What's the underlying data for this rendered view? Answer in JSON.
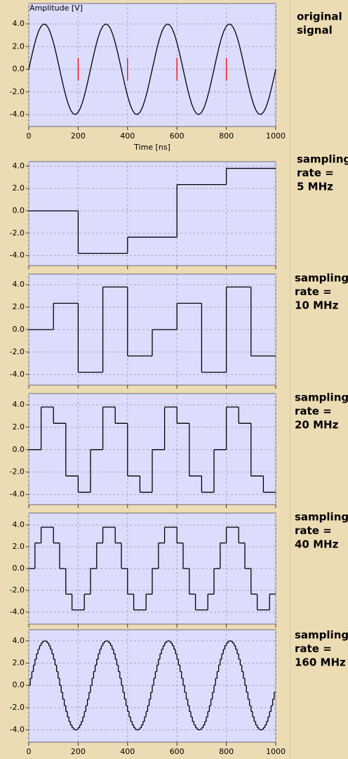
{
  "chart_data": [
    {
      "type": "line",
      "ylabel": "Amplitude [V]",
      "xlabel": "Time [ns]",
      "label": [
        "original",
        "signal"
      ],
      "color": "#000000",
      "grid": true,
      "xtick_labels": true,
      "xlim": [
        0,
        1000
      ],
      "xticks": [
        0,
        200,
        400,
        600,
        800,
        1000
      ],
      "ylim": [
        -5.05,
        5.8
      ],
      "yticks": [
        {
          "value": 4,
          "label": "4.0"
        },
        {
          "value": 2,
          "label": "2.0"
        },
        {
          "value": 0,
          "label": "0.0"
        },
        {
          "value": -2,
          "label": "-2.0"
        },
        {
          "value": -4,
          "label": "-4.0"
        }
      ],
      "markers": {
        "x": [
          200,
          400,
          600,
          800
        ],
        "low": -1,
        "high": 1,
        "color": "#ff0000"
      },
      "x": [
        0,
        10,
        20,
        30,
        40,
        50,
        60,
        70,
        80,
        90,
        100,
        110,
        120,
        130,
        140,
        150,
        160,
        170,
        180,
        190,
        200,
        210,
        220,
        230,
        240,
        250,
        260,
        270,
        280,
        290,
        300,
        310,
        320,
        330,
        340,
        350,
        360,
        370,
        380,
        390,
        400,
        410,
        420,
        430,
        440,
        450,
        460,
        470,
        480,
        490,
        500,
        510,
        520,
        530,
        540,
        550,
        560,
        570,
        580,
        590,
        600,
        610,
        620,
        630,
        640,
        650,
        660,
        670,
        680,
        690,
        700,
        710,
        720,
        730,
        740,
        750,
        760,
        770,
        780,
        790,
        800,
        810,
        820,
        830,
        840,
        850,
        860,
        870,
        880,
        890,
        900,
        910,
        920,
        930,
        940,
        950,
        960,
        970,
        980,
        990,
        1000
      ],
      "values": [
        0,
        0.99,
        1.93,
        2.74,
        3.38,
        3.8,
        3.99,
        3.93,
        3.62,
        3.08,
        2.35,
        1.47,
        0.5,
        -0.5,
        -1.47,
        -2.35,
        -3.08,
        -3.62,
        -3.93,
        -3.99,
        -3.8,
        -3.38,
        -2.74,
        -1.93,
        -0.99,
        0,
        0.99,
        1.93,
        2.74,
        3.38,
        3.8,
        3.99,
        3.93,
        3.62,
        3.08,
        2.35,
        1.47,
        0.5,
        -0.5,
        -1.47,
        -2.35,
        -3.08,
        -3.62,
        -3.93,
        -3.99,
        -3.8,
        -3.38,
        -2.74,
        -1.93,
        -0.99,
        0,
        0.99,
        1.93,
        2.74,
        3.38,
        3.8,
        3.99,
        3.93,
        3.62,
        3.08,
        2.35,
        1.47,
        0.5,
        -0.5,
        -1.47,
        -2.35,
        -3.08,
        -3.62,
        -3.93,
        -3.99,
        -3.8,
        -3.38,
        -2.74,
        -1.93,
        -0.99,
        0,
        0.99,
        1.93,
        2.74,
        3.38,
        3.8,
        3.99,
        3.93,
        3.62,
        3.08,
        2.35,
        1.47,
        0.5,
        -0.5,
        -1.47,
        -2.35,
        -3.08,
        -3.62,
        -3.93,
        -3.99,
        -3.8,
        -3.38,
        -2.74,
        -1.93,
        -0.99,
        0
      ]
    },
    {
      "type": "step",
      "label": [
        "sampling",
        "rate =",
        "5 MHz"
      ],
      "color": "#000000",
      "grid": true,
      "xtick_labels": false,
      "xlim": [
        0,
        1000
      ],
      "xticks": [
        0,
        200,
        400,
        600,
        800,
        1000
      ],
      "ylim": [
        -4.9,
        4.4
      ],
      "yticks": [
        {
          "value": 4,
          "label": "4.0"
        },
        {
          "value": 2,
          "label": "2.0"
        },
        {
          "value": 0,
          "label": "0.0"
        },
        {
          "value": -2,
          "label": "-2.0"
        },
        {
          "value": -4,
          "label": "-4.0"
        }
      ],
      "x": [
        0,
        200,
        400,
        600,
        800
      ],
      "values": [
        0,
        -3.8,
        -2.35,
        2.35,
        3.8
      ]
    },
    {
      "type": "step",
      "label": [
        "sampling",
        "rate =",
        "10 MHz"
      ],
      "color": "#000000",
      "grid": true,
      "xtick_labels": false,
      "xlim": [
        0,
        1000
      ],
      "xticks": [
        0,
        200,
        400,
        600,
        800,
        1000
      ],
      "ylim": [
        -4.95,
        4.95
      ],
      "yticks": [
        {
          "value": 4,
          "label": "4.0"
        },
        {
          "value": 2,
          "label": "2.0"
        },
        {
          "value": 0,
          "label": "0.0"
        },
        {
          "value": -2,
          "label": "-2.0"
        },
        {
          "value": -4,
          "label": "-4.0"
        }
      ],
      "x": [
        0,
        100,
        200,
        300,
        400,
        500,
        600,
        700,
        800,
        900
      ],
      "values": [
        0,
        2.35,
        -3.8,
        3.8,
        -2.35,
        0,
        2.35,
        -3.8,
        3.8,
        -2.35
      ]
    },
    {
      "type": "step",
      "label": [
        "sampling",
        "rate =",
        "20 MHz"
      ],
      "color": "#000000",
      "grid": true,
      "xtick_labels": false,
      "xlim": [
        0,
        1000
      ],
      "xticks": [
        0,
        200,
        400,
        600,
        800,
        1000
      ],
      "ylim": [
        -4.9,
        5
      ],
      "yticks": [
        {
          "value": 4,
          "label": "4.0"
        },
        {
          "value": 2,
          "label": "2.0"
        },
        {
          "value": 0,
          "label": "0.0"
        },
        {
          "value": -2,
          "label": "-2.0"
        },
        {
          "value": -4,
          "label": "-4.0"
        }
      ],
      "x": [
        0,
        50,
        100,
        150,
        200,
        250,
        300,
        350,
        400,
        450,
        500,
        550,
        600,
        650,
        700,
        750,
        800,
        850,
        900,
        950
      ],
      "values": [
        0,
        3.8,
        2.35,
        -2.35,
        -3.8,
        0,
        3.8,
        2.35,
        -2.35,
        -3.8,
        0,
        3.8,
        2.35,
        -2.35,
        -3.8,
        0,
        3.8,
        2.35,
        -2.35,
        -3.8
      ]
    },
    {
      "type": "step",
      "label": [
        "sampling",
        "rate =",
        "40 MHz"
      ],
      "color": "#000000",
      "grid": true,
      "xtick_labels": false,
      "xlim": [
        0,
        1000
      ],
      "xticks": [
        0,
        200,
        400,
        600,
        800,
        1000
      ],
      "ylim": [
        -5.1,
        5.1
      ],
      "yticks": [
        {
          "value": 4,
          "label": "4.0"
        },
        {
          "value": 2,
          "label": "2.0"
        },
        {
          "value": 0,
          "label": "0.0"
        },
        {
          "value": -2,
          "label": "-2.0"
        },
        {
          "value": -4,
          "label": "-4.0"
        }
      ],
      "x": [
        0,
        25,
        50,
        75,
        100,
        125,
        150,
        175,
        200,
        225,
        250,
        275,
        300,
        325,
        350,
        375,
        400,
        425,
        450,
        475,
        500,
        525,
        550,
        575,
        600,
        625,
        650,
        675,
        700,
        725,
        750,
        775,
        800,
        825,
        850,
        875,
        900,
        925,
        950,
        975
      ],
      "values": [
        0,
        2.35,
        3.8,
        3.8,
        2.35,
        0,
        -2.35,
        -3.8,
        -3.8,
        -2.35,
        0,
        2.35,
        3.8,
        3.8,
        2.35,
        0,
        -2.35,
        -3.8,
        -3.8,
        -2.35,
        0,
        2.35,
        3.8,
        3.8,
        2.35,
        0,
        -2.35,
        -3.8,
        -3.8,
        -2.35,
        0,
        2.35,
        3.8,
        3.8,
        2.35,
        0,
        -2.35,
        -3.8,
        -3.8,
        -2.35
      ]
    },
    {
      "type": "step",
      "label": [
        "sampling",
        "rate =",
        "160 MHz"
      ],
      "color": "#000000",
      "grid": true,
      "xtick_labels": true,
      "xlim": [
        0,
        1000
      ],
      "xticks": [
        0,
        200,
        400,
        600,
        800,
        1000
      ],
      "ylim": [
        -5.1,
        5
      ],
      "yticks": [
        {
          "value": 4,
          "label": "4.0"
        },
        {
          "value": 2,
          "label": "2.0"
        },
        {
          "value": 0,
          "label": "0.0"
        },
        {
          "value": -2,
          "label": "-2.0"
        },
        {
          "value": -4,
          "label": "-4.0"
        }
      ],
      "x": [
        0,
        6.25,
        12.5,
        18.75,
        25,
        31.25,
        37.5,
        43.75,
        50,
        56.25,
        62.5,
        68.75,
        75,
        81.25,
        87.5,
        93.75,
        100,
        106.25,
        112.5,
        118.75,
        125,
        131.25,
        137.5,
        143.75,
        150,
        156.25,
        162.5,
        168.75,
        175,
        181.25,
        187.5,
        193.75,
        200,
        206.25,
        212.5,
        218.75,
        225,
        231.25,
        237.5,
        243.75,
        250,
        256.25,
        262.5,
        268.75,
        275,
        281.25,
        287.5,
        293.75,
        300,
        306.25,
        312.5,
        318.75,
        325,
        331.25,
        337.5,
        343.75,
        350,
        356.25,
        362.5,
        368.75,
        375,
        381.25,
        387.5,
        393.75,
        400,
        406.25,
        412.5,
        418.75,
        425,
        431.25,
        437.5,
        443.75,
        450,
        456.25,
        462.5,
        468.75,
        475,
        481.25,
        487.5,
        493.75,
        500,
        506.25,
        512.5,
        518.75,
        525,
        531.25,
        537.5,
        543.75,
        550,
        556.25,
        562.5,
        568.75,
        575,
        581.25,
        587.5,
        593.75,
        600,
        606.25,
        612.5,
        618.75,
        625,
        631.25,
        637.5,
        643.75,
        650,
        656.25,
        662.5,
        668.75,
        675,
        681.25,
        687.5,
        693.75,
        700,
        706.25,
        712.5,
        718.75,
        725,
        731.25,
        737.5,
        743.75,
        750,
        756.25,
        762.5,
        768.75,
        775,
        781.25,
        787.5,
        793.75,
        800,
        806.25,
        812.5,
        818.75,
        825,
        831.25,
        837.5,
        843.75,
        850,
        856.25,
        862.5,
        868.75,
        875,
        881.25,
        887.5,
        893.75,
        900,
        906.25,
        912.5,
        918.75,
        925,
        931.25,
        937.5,
        943.75,
        950,
        956.25,
        962.5,
        968.75,
        975,
        981.25,
        987.5,
        993.75
      ],
      "values": [
        0,
        0.63,
        1.24,
        1.82,
        2.35,
        2.83,
        3.24,
        3.56,
        3.8,
        3.95,
        4,
        3.95,
        3.8,
        3.56,
        3.24,
        2.83,
        2.35,
        1.82,
        1.24,
        0.63,
        0,
        -0.63,
        -1.24,
        -1.82,
        -2.35,
        -2.83,
        -3.24,
        -3.56,
        -3.8,
        -3.95,
        -4,
        -3.95,
        -3.8,
        -3.56,
        -3.24,
        -2.83,
        -2.35,
        -1.82,
        -1.24,
        -0.63,
        0,
        0.63,
        1.24,
        1.82,
        2.35,
        2.83,
        3.24,
        3.56,
        3.8,
        3.95,
        4,
        3.95,
        3.8,
        3.56,
        3.24,
        2.83,
        2.35,
        1.82,
        1.24,
        0.63,
        0,
        -0.63,
        -1.24,
        -1.82,
        -2.35,
        -2.83,
        -3.24,
        -3.56,
        -3.8,
        -3.95,
        -4,
        -3.95,
        -3.8,
        -3.56,
        -3.24,
        -2.83,
        -2.35,
        -1.82,
        -1.24,
        -0.63,
        0,
        0.63,
        1.24,
        1.82,
        2.35,
        2.83,
        3.24,
        3.56,
        3.8,
        3.95,
        4,
        3.95,
        3.8,
        3.56,
        3.24,
        2.83,
        2.35,
        1.82,
        1.24,
        0.63,
        0,
        -0.63,
        -1.24,
        -1.82,
        -2.35,
        -2.83,
        -3.24,
        -3.56,
        -3.8,
        -3.95,
        -4,
        -3.95,
        -3.8,
        -3.56,
        -3.24,
        -2.83,
        -2.35,
        -1.82,
        -1.24,
        -0.63,
        0,
        0.63,
        1.24,
        1.82,
        2.35,
        2.83,
        3.24,
        3.56,
        3.8,
        3.95,
        4,
        3.95,
        3.8,
        3.56,
        3.24,
        2.83,
        2.35,
        1.82,
        1.24,
        0.63,
        0,
        -0.63,
        -1.24,
        -1.82,
        -2.35,
        -2.83,
        -3.24,
        -3.56,
        -3.8,
        -3.95,
        -4,
        -3.95,
        -3.8,
        -3.56,
        -3.24,
        -2.83,
        -2.35,
        -1.82,
        -1.24,
        -0.63
      ]
    }
  ]
}
